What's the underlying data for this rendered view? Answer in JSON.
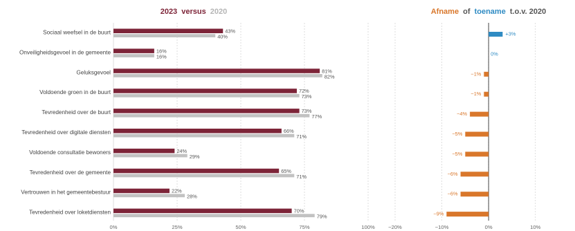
{
  "colors": {
    "bar2023": "#7d2438",
    "bar2020": "#c2c2c2",
    "decrease": "#d9772b",
    "increase": "#2f8bc3",
    "grid": "#d6d6d6",
    "text": "#444444"
  },
  "chart_data": [
    {
      "type": "bar",
      "orientation": "horizontal",
      "title_parts": {
        "year_a": "2023",
        "word": "versus",
        "year_b": "2020"
      },
      "categories": [
        "Sociaal weefsel in de buurt",
        "Onveiligheidsgevoel in de gemeente",
        "Geluksgevoel",
        "Voldoende groen in de buurt",
        "Tevredenheid over de buurt",
        "Tevredenheid over digitale diensten",
        "Voldoende consultatie bewoners",
        "Tevredenheid over de gemeente",
        "Vertrouwen in het gemeentebestuur",
        "Tevredenheid over loketdiensten"
      ],
      "series": [
        {
          "name": "2023",
          "values": [
            43,
            16,
            81,
            72,
            73,
            66,
            24,
            65,
            22,
            70
          ]
        },
        {
          "name": "2020",
          "values": [
            40,
            16,
            82,
            73,
            77,
            71,
            29,
            71,
            28,
            79
          ]
        }
      ],
      "value_labels": {
        "2023": [
          "43%",
          "16%",
          "81%",
          "72%",
          "73%",
          "66%",
          "24%",
          "65%",
          "22%",
          "70%"
        ],
        "2020": [
          "40%",
          "16%",
          "82%",
          "73%",
          "77%",
          "71%",
          "29%",
          "71%",
          "28%",
          "79%"
        ]
      },
      "xlim": [
        0,
        100
      ],
      "xticks": [
        0,
        25,
        50,
        75,
        100
      ],
      "xtick_labels": [
        "0%",
        "25%",
        "50%",
        "75%",
        "100%"
      ],
      "grid": true
    },
    {
      "type": "bar",
      "orientation": "horizontal",
      "title_parts": {
        "word_a": "Afname",
        "word": "of",
        "word_b": "toename",
        "suffix": "t.o.v. 2020"
      },
      "categories_ref": "same as first chart",
      "values": [
        3,
        0,
        -1,
        -1,
        -4,
        -5,
        -5,
        -6,
        -6,
        -9
      ],
      "value_labels": [
        "+3%",
        "0%",
        "−1%",
        "−1%",
        "−4%",
        "−5%",
        "−5%",
        "−6%",
        "−6%",
        "−9%"
      ],
      "xlim": [
        -20,
        17
      ],
      "xticks": [
        -20,
        -10,
        0,
        10
      ],
      "xtick_labels": [
        "−20%",
        "−10%",
        "0%",
        "10%"
      ],
      "grid": true
    }
  ]
}
